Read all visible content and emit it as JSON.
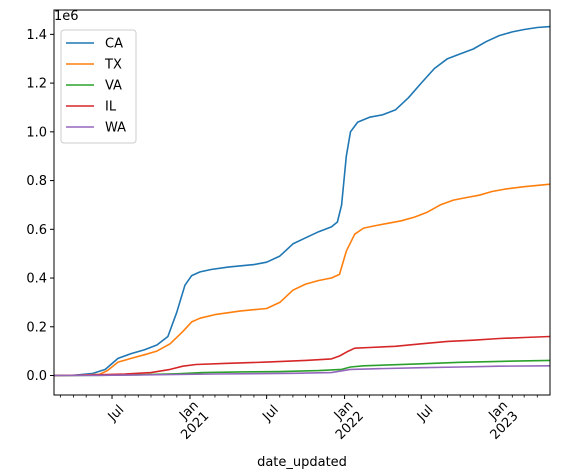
{
  "chart_data": {
    "type": "line",
    "title": "",
    "xlabel": "date_updated",
    "ylabel": "",
    "y_offset_text": "1e6",
    "y_scale": 1000000,
    "grid": false,
    "legend_position": "upper left",
    "xlim": [
      "2020-02-15",
      "2023-05-01"
    ],
    "ylim": [
      -80000,
      1500000
    ],
    "y_ticks": [
      {
        "value": 0,
        "label": "0.0"
      },
      {
        "value": 200000,
        "label": "0.2"
      },
      {
        "value": 400000,
        "label": "0.4"
      },
      {
        "value": 600000,
        "label": "0.6"
      },
      {
        "value": 800000,
        "label": "0.8"
      },
      {
        "value": 1000000,
        "label": "1.0"
      },
      {
        "value": 1200000,
        "label": "1.2"
      },
      {
        "value": 1400000,
        "label": "1.4"
      }
    ],
    "x_major_ticks": [
      {
        "date": "2020-07-01",
        "lines": [
          "Jul"
        ]
      },
      {
        "date": "2021-01-01",
        "lines": [
          "Jan",
          "2021"
        ]
      },
      {
        "date": "2021-07-01",
        "lines": [
          "Jul"
        ]
      },
      {
        "date": "2022-01-01",
        "lines": [
          "Jan",
          "2022"
        ]
      },
      {
        "date": "2022-07-01",
        "lines": [
          "Jul"
        ]
      },
      {
        "date": "2023-01-01",
        "lines": [
          "Jan",
          "2023"
        ]
      }
    ],
    "x_minor_ticks": [
      "2020-03-01",
      "2020-04-01",
      "2020-05-01",
      "2020-06-01",
      "2020-08-01",
      "2020-09-01",
      "2020-10-01",
      "2020-11-01",
      "2020-12-01",
      "2021-02-01",
      "2021-03-01",
      "2021-04-01",
      "2021-05-01",
      "2021-06-01",
      "2021-08-01",
      "2021-09-01",
      "2021-10-01",
      "2021-11-01",
      "2021-12-01",
      "2022-02-01",
      "2022-03-01",
      "2022-04-01",
      "2022-05-01",
      "2022-06-01",
      "2022-08-01",
      "2022-09-01",
      "2022-10-01",
      "2022-11-01",
      "2022-12-01",
      "2023-02-01",
      "2023-03-01",
      "2023-04-01"
    ],
    "series": [
      {
        "name": "CA",
        "color": "#1f77b4",
        "points": [
          [
            "2020-02-15",
            0
          ],
          [
            "2020-04-01",
            1000
          ],
          [
            "2020-05-15",
            8000
          ],
          [
            "2020-06-15",
            25000
          ],
          [
            "2020-07-15",
            70000
          ],
          [
            "2020-08-15",
            90000
          ],
          [
            "2020-09-15",
            105000
          ],
          [
            "2020-10-15",
            125000
          ],
          [
            "2020-11-10",
            160000
          ],
          [
            "2020-12-01",
            260000
          ],
          [
            "2020-12-20",
            370000
          ],
          [
            "2021-01-05",
            410000
          ],
          [
            "2021-01-25",
            425000
          ],
          [
            "2021-02-20",
            435000
          ],
          [
            "2021-04-01",
            445000
          ],
          [
            "2021-06-01",
            455000
          ],
          [
            "2021-07-01",
            465000
          ],
          [
            "2021-08-01",
            490000
          ],
          [
            "2021-09-01",
            540000
          ],
          [
            "2021-10-01",
            565000
          ],
          [
            "2021-11-01",
            590000
          ],
          [
            "2021-12-01",
            610000
          ],
          [
            "2021-12-15",
            630000
          ],
          [
            "2021-12-25",
            700000
          ],
          [
            "2022-01-05",
            900000
          ],
          [
            "2022-01-15",
            1000000
          ],
          [
            "2022-02-01",
            1040000
          ],
          [
            "2022-03-01",
            1060000
          ],
          [
            "2022-04-01",
            1070000
          ],
          [
            "2022-05-01",
            1090000
          ],
          [
            "2022-06-01",
            1140000
          ],
          [
            "2022-07-01",
            1200000
          ],
          [
            "2022-08-01",
            1260000
          ],
          [
            "2022-09-01",
            1300000
          ],
          [
            "2022-10-01",
            1320000
          ],
          [
            "2022-11-01",
            1340000
          ],
          [
            "2022-12-01",
            1370000
          ],
          [
            "2023-01-01",
            1395000
          ],
          [
            "2023-02-01",
            1410000
          ],
          [
            "2023-03-01",
            1420000
          ],
          [
            "2023-04-01",
            1428000
          ],
          [
            "2023-05-01",
            1432000
          ]
        ]
      },
      {
        "name": "TX",
        "color": "#ff7f0e",
        "points": [
          [
            "2020-02-15",
            0
          ],
          [
            "2020-04-15",
            1000
          ],
          [
            "2020-06-01",
            5000
          ],
          [
            "2020-06-20",
            20000
          ],
          [
            "2020-07-15",
            55000
          ],
          [
            "2020-08-15",
            70000
          ],
          [
            "2020-09-15",
            85000
          ],
          [
            "2020-10-15",
            100000
          ],
          [
            "2020-11-15",
            130000
          ],
          [
            "2020-12-15",
            180000
          ],
          [
            "2021-01-05",
            220000
          ],
          [
            "2021-01-25",
            235000
          ],
          [
            "2021-03-01",
            250000
          ],
          [
            "2021-05-01",
            265000
          ],
          [
            "2021-07-01",
            275000
          ],
          [
            "2021-08-01",
            300000
          ],
          [
            "2021-09-01",
            350000
          ],
          [
            "2021-10-01",
            375000
          ],
          [
            "2021-11-01",
            390000
          ],
          [
            "2021-12-01",
            400000
          ],
          [
            "2021-12-20",
            415000
          ],
          [
            "2022-01-05",
            510000
          ],
          [
            "2022-01-25",
            580000
          ],
          [
            "2022-02-15",
            605000
          ],
          [
            "2022-03-15",
            615000
          ],
          [
            "2022-04-15",
            625000
          ],
          [
            "2022-05-15",
            635000
          ],
          [
            "2022-06-15",
            650000
          ],
          [
            "2022-07-15",
            670000
          ],
          [
            "2022-08-15",
            700000
          ],
          [
            "2022-09-15",
            720000
          ],
          [
            "2022-10-15",
            730000
          ],
          [
            "2022-11-15",
            740000
          ],
          [
            "2022-12-15",
            755000
          ],
          [
            "2023-01-15",
            765000
          ],
          [
            "2023-03-01",
            775000
          ],
          [
            "2023-05-01",
            785000
          ]
        ]
      },
      {
        "name": "VA",
        "color": "#2ca02c",
        "points": [
          [
            "2020-02-15",
            0
          ],
          [
            "2020-06-01",
            1000
          ],
          [
            "2020-09-01",
            3000
          ],
          [
            "2020-12-01",
            7000
          ],
          [
            "2021-02-01",
            12000
          ],
          [
            "2021-05-01",
            15000
          ],
          [
            "2021-08-01",
            16000
          ],
          [
            "2021-11-01",
            20000
          ],
          [
            "2021-12-25",
            25000
          ],
          [
            "2022-01-15",
            35000
          ],
          [
            "2022-02-15",
            40000
          ],
          [
            "2022-07-01",
            48000
          ],
          [
            "2022-10-01",
            54000
          ],
          [
            "2023-01-01",
            58000
          ],
          [
            "2023-05-01",
            62000
          ]
        ]
      },
      {
        "name": "IL",
        "color": "#d62728",
        "points": [
          [
            "2020-02-15",
            0
          ],
          [
            "2020-05-01",
            2000
          ],
          [
            "2020-08-01",
            6000
          ],
          [
            "2020-10-01",
            12000
          ],
          [
            "2020-11-15",
            25000
          ],
          [
            "2020-12-15",
            38000
          ],
          [
            "2021-01-15",
            45000
          ],
          [
            "2021-04-01",
            50000
          ],
          [
            "2021-07-01",
            55000
          ],
          [
            "2021-10-01",
            62000
          ],
          [
            "2021-12-01",
            68000
          ],
          [
            "2021-12-20",
            80000
          ],
          [
            "2022-01-10",
            100000
          ],
          [
            "2022-01-25",
            112000
          ],
          [
            "2022-03-01",
            115000
          ],
          [
            "2022-05-01",
            120000
          ],
          [
            "2022-07-01",
            130000
          ],
          [
            "2022-09-01",
            140000
          ],
          [
            "2022-11-01",
            145000
          ],
          [
            "2023-01-01",
            152000
          ],
          [
            "2023-03-01",
            156000
          ],
          [
            "2023-05-01",
            160000
          ]
        ]
      },
      {
        "name": "WA",
        "color": "#9467bd",
        "points": [
          [
            "2020-02-15",
            0
          ],
          [
            "2020-06-01",
            1000
          ],
          [
            "2020-09-01",
            2000
          ],
          [
            "2020-12-01",
            4000
          ],
          [
            "2021-03-01",
            6000
          ],
          [
            "2021-06-01",
            7500
          ],
          [
            "2021-09-01",
            9000
          ],
          [
            "2021-12-01",
            12000
          ],
          [
            "2022-01-15",
            25000
          ],
          [
            "2022-03-01",
            27000
          ],
          [
            "2022-07-01",
            32000
          ],
          [
            "2022-10-01",
            35000
          ],
          [
            "2023-01-01",
            38000
          ],
          [
            "2023-05-01",
            40000
          ]
        ]
      }
    ]
  }
}
